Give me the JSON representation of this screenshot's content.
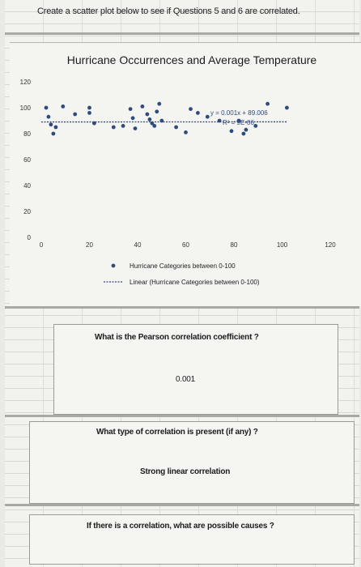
{
  "header": {
    "prompt": "Create a scatter plot below to see if Questions 5 and 6 are correlated."
  },
  "chart_data": {
    "type": "scatter",
    "title": "Hurricane Occurrences and Average Temperature",
    "xlabel": "",
    "ylabel": "",
    "xlim": [
      0,
      120
    ],
    "ylim": [
      0,
      120
    ],
    "x_ticks": [
      "0",
      "20",
      "40",
      "60",
      "80",
      "100",
      "120"
    ],
    "y_ticks": [
      "0",
      "20",
      "40",
      "60",
      "80",
      "100",
      "120"
    ],
    "grid": false,
    "legend_position": "bottom",
    "marker_color": "#2f4b7c",
    "trend_color": "#2f4b7c",
    "series": [
      {
        "name": "Hurricane Categories between 0-100",
        "points": [
          [
            2,
            100
          ],
          [
            3,
            93
          ],
          [
            4,
            87
          ],
          [
            5,
            80
          ],
          [
            6,
            85
          ],
          [
            9,
            101
          ],
          [
            14,
            95
          ],
          [
            20,
            96
          ],
          [
            20,
            100
          ],
          [
            22,
            88
          ],
          [
            30,
            85
          ],
          [
            34,
            86
          ],
          [
            37,
            99
          ],
          [
            38,
            92
          ],
          [
            39,
            84
          ],
          [
            42,
            101
          ],
          [
            44,
            95
          ],
          [
            45,
            91
          ],
          [
            46,
            88
          ],
          [
            47,
            86
          ],
          [
            48,
            97
          ],
          [
            49,
            103
          ],
          [
            50,
            90
          ],
          [
            56,
            85
          ],
          [
            60,
            81
          ],
          [
            62,
            99
          ],
          [
            65,
            96
          ],
          [
            69,
            93
          ],
          [
            74,
            90
          ],
          [
            79,
            82
          ],
          [
            82,
            90
          ],
          [
            84,
            80
          ],
          [
            85,
            83
          ],
          [
            89,
            86
          ],
          [
            94,
            103
          ],
          [
            102,
            100
          ]
        ]
      }
    ],
    "trendline": {
      "name": "Linear (Hurricane Categories between 0-100)",
      "equation": "y = 0.001x + 89.006",
      "r_squared": "R² = 9E-06",
      "slope": 0.001,
      "intercept": 89.006
    }
  },
  "questions": [
    {
      "question": "What is the Pearson correlation coefficient ?",
      "answer": "0.001"
    },
    {
      "question": "What type of correlation is present (if any) ?",
      "answer": "Strong linear correlation"
    },
    {
      "question": "If there is a correlation, what are possible causes ?",
      "answer": ""
    }
  ]
}
